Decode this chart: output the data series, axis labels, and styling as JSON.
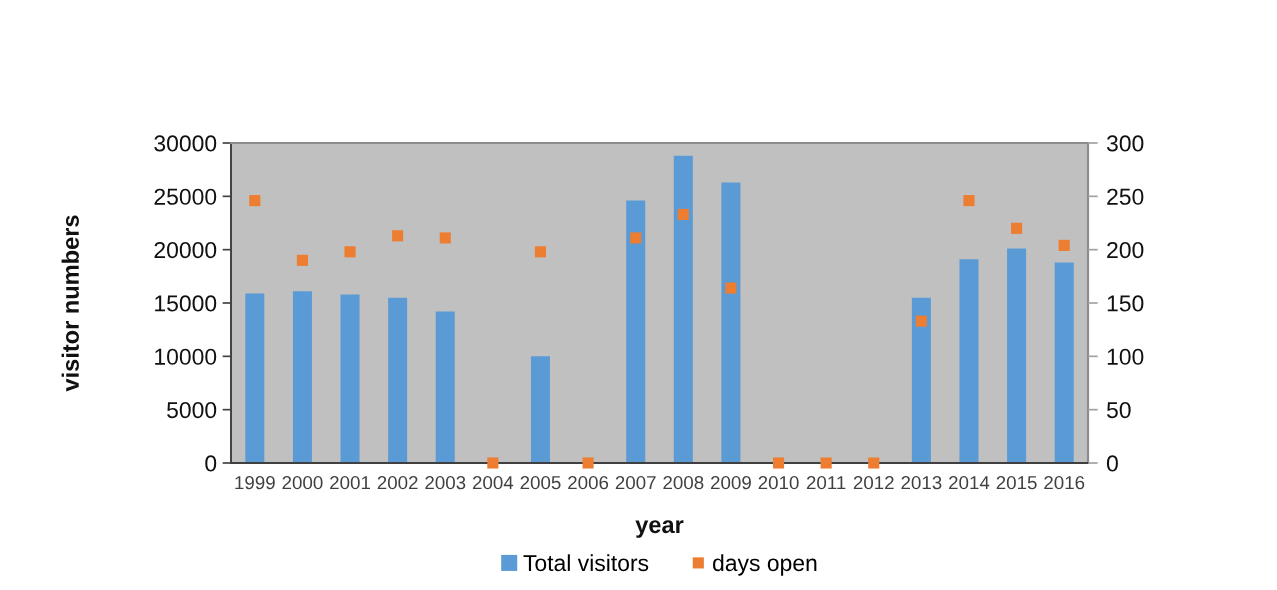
{
  "chart_data": {
    "type": "bar",
    "categories": [
      "1999",
      "2000",
      "2001",
      "2002",
      "2003",
      "2004",
      "2005",
      "2006",
      "2007",
      "2008",
      "2009",
      "2010",
      "2011",
      "2012",
      "2013",
      "2014",
      "2015",
      "2016"
    ],
    "series": [
      {
        "name": "Total visitors",
        "color": "#5b9bd5",
        "values": [
          15900,
          16100,
          15800,
          15500,
          14200,
          null,
          10000,
          null,
          24600,
          28800,
          26300,
          null,
          null,
          null,
          15500,
          19100,
          20100,
          18800
        ]
      },
      {
        "name": "days open",
        "type": "scatter",
        "axis": "y2",
        "color": "#ed7d31",
        "values": [
          246,
          190,
          198,
          213,
          211,
          0,
          198,
          0,
          211,
          233,
          164,
          0,
          0,
          0,
          133,
          246,
          220,
          204
        ]
      }
    ],
    "xlabel": "year",
    "ylabel": "visitor numbers",
    "ylim": [
      0,
      30000
    ],
    "yticks": [
      0,
      5000,
      10000,
      15000,
      20000,
      25000,
      30000
    ],
    "y2lim": [
      0,
      300
    ],
    "y2ticks": [
      0,
      50,
      100,
      150,
      200,
      250,
      300
    ],
    "marker": "square",
    "legend": "bottom"
  }
}
